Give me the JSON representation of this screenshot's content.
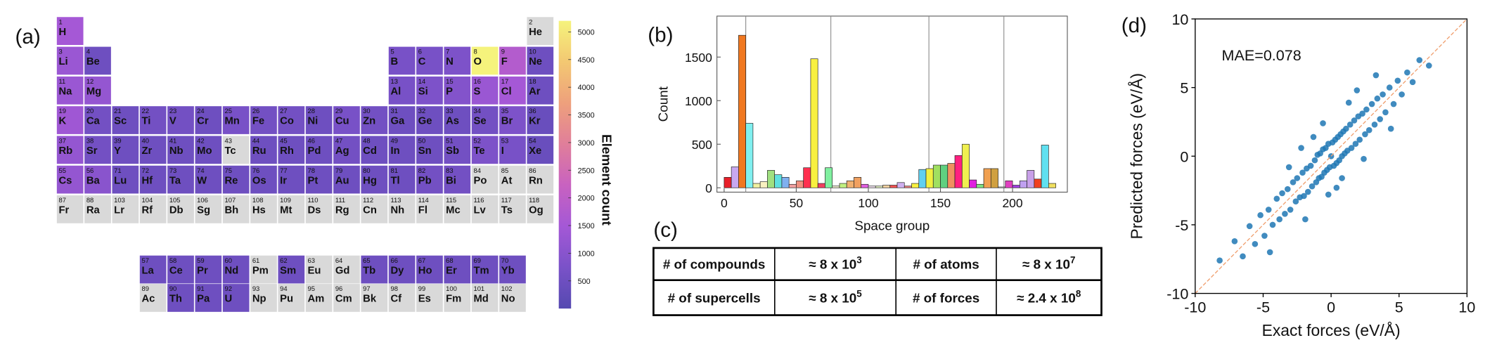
{
  "chart_data": [
    {
      "type": "periodic-table",
      "panel_label": "(a)",
      "numbers": [
        1,
        2,
        3,
        4,
        5,
        6,
        7,
        8,
        9,
        10,
        11,
        12,
        13,
        14,
        15,
        16,
        17,
        18,
        19,
        20,
        21,
        22,
        23,
        24,
        25,
        26,
        27,
        28,
        29,
        30,
        31,
        32,
        33,
        34,
        35,
        36,
        37,
        38,
        39,
        40,
        41,
        42,
        43,
        44,
        45,
        46,
        47,
        48,
        49,
        50,
        51,
        52,
        53,
        54,
        55,
        56,
        57,
        58,
        59,
        60,
        61,
        62,
        63,
        64,
        65,
        66,
        67,
        68,
        69,
        70,
        71,
        72,
        73,
        74,
        75,
        76,
        77,
        78,
        79,
        80,
        81,
        82,
        83,
        84,
        85,
        86,
        87,
        88,
        89,
        90,
        91,
        92,
        93,
        94,
        95,
        96,
        97,
        98,
        99,
        100,
        101,
        102,
        103,
        104,
        105,
        106,
        107,
        108,
        109,
        110,
        111,
        112,
        113,
        114,
        115,
        116,
        117,
        118
      ],
      "symbols": [
        "H",
        "He",
        "Li",
        "Be",
        "B",
        "C",
        "N",
        "O",
        "F",
        "Ne",
        "Na",
        "Mg",
        "Al",
        "Si",
        "P",
        "S",
        "Cl",
        "Ar",
        "K",
        "Ca",
        "Sc",
        "Ti",
        "V",
        "Cr",
        "Mn",
        "Fe",
        "Co",
        "Ni",
        "Cu",
        "Zn",
        "Ga",
        "Ge",
        "As",
        "Se",
        "Br",
        "Kr",
        "Rb",
        "Sr",
        "Y",
        "Zr",
        "Nb",
        "Mo",
        "Tc",
        "Ru",
        "Rh",
        "Pd",
        "Ag",
        "Cd",
        "In",
        "Sn",
        "Sb",
        "Te",
        "I",
        "Xe",
        "Cs",
        "Ba",
        "La",
        "Ce",
        "Pr",
        "Nd",
        "Pm",
        "Sm",
        "Eu",
        "Gd",
        "Tb",
        "Dy",
        "Ho",
        "Er",
        "Tm",
        "Yb",
        "Lu",
        "Hf",
        "Ta",
        "W",
        "Re",
        "Os",
        "Ir",
        "Pt",
        "Au",
        "Hg",
        "Tl",
        "Pb",
        "Bi",
        "Po",
        "At",
        "Rn",
        "Fr",
        "Ra",
        "Ac",
        "Th",
        "Pa",
        "U",
        "Np",
        "Pu",
        "Am",
        "Cm",
        "Bk",
        "Cf",
        "Es",
        "Fm",
        "Md",
        "No",
        "Lr",
        "Rf",
        "Db",
        "Sg",
        "Bh",
        "Hs",
        "Mt",
        "Ds",
        "Rg",
        "Cn",
        "Nh",
        "Fl",
        "Mc",
        "Lv",
        "Ts",
        "Og"
      ],
      "values": [
        1500,
        null,
        1300,
        500,
        700,
        700,
        800,
        5200,
        1800,
        500,
        1300,
        1200,
        700,
        800,
        900,
        1300,
        1500,
        500,
        1400,
        600,
        500,
        600,
        600,
        500,
        700,
        600,
        600,
        500,
        700,
        600,
        500,
        500,
        500,
        600,
        800,
        400,
        1200,
        600,
        500,
        500,
        500,
        500,
        null,
        500,
        500,
        500,
        600,
        500,
        500,
        500,
        600,
        800,
        700,
        400,
        1200,
        1000,
        500,
        500,
        500,
        500,
        null,
        500,
        null,
        null,
        500,
        500,
        500,
        500,
        500,
        500,
        500,
        500,
        500,
        500,
        500,
        500,
        500,
        500,
        500,
        500,
        500,
        600,
        600,
        null,
        null,
        null,
        null,
        null,
        null,
        500,
        500,
        500,
        null,
        null,
        null,
        null,
        null,
        null,
        null,
        null,
        null,
        null,
        null,
        null,
        null,
        null,
        null,
        null,
        null,
        null,
        null,
        null,
        null,
        null,
        null,
        null,
        null,
        null
      ],
      "colormap": [
        "#5549b0",
        "#7a52c8",
        "#a458d6",
        "#c862c0",
        "#e07e9a",
        "#eea07c",
        "#f3c872",
        "#f5f37c"
      ],
      "missing_color": "#d9d9d9",
      "clim": [
        0,
        5200
      ],
      "cticks": [
        500,
        1000,
        1500,
        2000,
        2500,
        3000,
        3500,
        4000,
        4500,
        5000
      ],
      "colorbar_label": "Element count"
    },
    {
      "type": "histogram",
      "panel_label": "(b)",
      "xlabel": "Space group",
      "ylabel": "Count",
      "bins": [
        0,
        5,
        10,
        15,
        20,
        25,
        30,
        35,
        40,
        45,
        50,
        55,
        60,
        65,
        70,
        75,
        80,
        85,
        90,
        95,
        100,
        105,
        110,
        115,
        120,
        125,
        130,
        135,
        140,
        145,
        150,
        155,
        160,
        165,
        170,
        175,
        180,
        185,
        190,
        195,
        200,
        205,
        210,
        215,
        220,
        225,
        230
      ],
      "values": [
        120,
        240,
        1750,
        740,
        50,
        70,
        200,
        150,
        120,
        40,
        80,
        230,
        1480,
        50,
        230,
        20,
        50,
        80,
        120,
        40,
        20,
        20,
        30,
        30,
        60,
        20,
        50,
        210,
        220,
        260,
        260,
        280,
        370,
        500,
        90,
        40,
        220,
        220,
        10,
        80,
        30,
        80,
        200,
        100,
        490,
        50
      ],
      "colors": [
        "#e8202a",
        "#c8a8f0",
        "#f07820",
        "#80f0f0",
        "#f0f0a0",
        "#f8f0c0",
        "#a0e080",
        "#60e0e0",
        "#80b0f0",
        "#f0a0a0",
        "#f09080",
        "#ff3050",
        "#f8f040",
        "#f04060",
        "#80f0a0",
        "#f0f0d0",
        "#c0f080",
        "#f0b070",
        "#f0a060",
        "#e060e0",
        "#f0e0f0",
        "#e0f0c0",
        "#f0d0a0",
        "#f05050",
        "#d0b0f0",
        "#f08080",
        "#f8f040",
        "#60d0f0",
        "#f0f040",
        "#a0e060",
        "#60d080",
        "#f09060",
        "#ff2080",
        "#f0f050",
        "#e020e0",
        "#80e080",
        "#f0a050",
        "#d0a040",
        "#e0e0e0",
        "#e040c0",
        "#a040e0",
        "#c0a0f0",
        "#c8a0e8",
        "#f04020",
        "#60e0f0",
        "#f0e060"
      ],
      "vlines": [
        15,
        74,
        142,
        194
      ],
      "xlim": [
        -5,
        238
      ],
      "xticks": [
        0,
        50,
        100,
        150,
        200
      ],
      "ylim": [
        -50,
        1970
      ],
      "yticks": [
        0,
        500,
        1000,
        1500
      ]
    },
    {
      "type": "scatter",
      "panel_label": "(d)",
      "xlabel": "Exact forces (eV/Å)",
      "ylabel": "Predicted forces (eV/Å)",
      "annotation": "MAE=0.078",
      "color": "#1f77b4",
      "diagonal": true,
      "diagonal_color": "#f0a070",
      "x": [
        -8.2,
        -7.1,
        -6.5,
        -6.0,
        -5.6,
        -5.2,
        -4.9,
        -4.6,
        -4.3,
        -4.0,
        -3.8,
        -3.6,
        -3.4,
        -3.2,
        -3.0,
        -2.8,
        -2.6,
        -2.5,
        -2.3,
        -2.1,
        -2.0,
        -1.8,
        -1.7,
        -1.5,
        -1.4,
        -1.2,
        -1.1,
        -1.0,
        -0.9,
        -0.8,
        -0.7,
        -0.6,
        -0.5,
        -0.4,
        -0.3,
        -0.2,
        -0.1,
        0.0,
        0.1,
        0.2,
        0.3,
        0.4,
        0.5,
        0.6,
        0.7,
        0.8,
        0.9,
        1.0,
        1.1,
        1.2,
        1.4,
        1.5,
        1.7,
        1.8,
        2.0,
        2.1,
        2.3,
        2.5,
        2.6,
        2.8,
        3.0,
        3.2,
        3.4,
        3.6,
        3.8,
        4.0,
        4.3,
        4.6,
        4.9,
        5.2,
        5.6,
        6.0,
        6.5,
        7.2,
        -3.1,
        -1.9,
        -0.6,
        0.4,
        1.3,
        2.4,
        3.3,
        -2.2,
        1.9,
        -4.5,
        4.4,
        -0.2,
        0.8,
        -1.3
      ],
      "y": [
        -7.6,
        -6.2,
        -7.3,
        -5.1,
        -6.4,
        -4.3,
        -5.8,
        -3.9,
        -5.0,
        -3.1,
        -4.6,
        -2.7,
        -4.2,
        -2.4,
        -3.9,
        -1.9,
        -3.3,
        -1.6,
        -3.0,
        -1.2,
        -2.9,
        -0.9,
        -2.6,
        -0.7,
        -2.2,
        -0.3,
        -1.9,
        0.1,
        -1.6,
        0.2,
        -1.5,
        0.5,
        -1.2,
        0.6,
        -1.0,
        0.9,
        -0.8,
        0.0,
        1.0,
        -0.7,
        1.2,
        -0.5,
        1.4,
        -0.3,
        1.6,
        0.0,
        1.8,
        0.2,
        2.0,
        0.4,
        2.3,
        0.6,
        2.6,
        0.9,
        2.9,
        1.2,
        3.1,
        1.6,
        3.4,
        1.9,
        3.8,
        2.3,
        4.2,
        2.7,
        4.5,
        3.2,
        5.0,
        3.8,
        5.5,
        4.5,
        6.1,
        5.4,
        7.0,
        6.6,
        -0.8,
        -4.6,
        2.4,
        -2.3,
        3.9,
        -0.2,
        5.9,
        0.6,
        4.8,
        -7.0,
        2.0,
        -2.8,
        -1.6,
        1.4
      ],
      "xlim": [
        -10,
        10
      ],
      "xticks": [
        -10,
        -5,
        0,
        5,
        10
      ],
      "ylim": [
        -10,
        10
      ],
      "yticks": [
        -10,
        -5,
        0,
        5,
        10
      ]
    }
  ],
  "table": {
    "panel_label": "(c)",
    "rows": [
      [
        {
          "text": "# of compounds"
        },
        {
          "text": "≈ 8 x 10",
          "sup": "3"
        },
        {
          "text": "# of atoms"
        },
        {
          "text": "≈ 8 x 10",
          "sup": "7"
        }
      ],
      [
        {
          "text": "# of supercells"
        },
        {
          "text": "≈ 8 x 10",
          "sup": "5"
        },
        {
          "text": "# of forces"
        },
        {
          "text": "≈ 2.4 x 10",
          "sup": "8"
        }
      ]
    ]
  }
}
